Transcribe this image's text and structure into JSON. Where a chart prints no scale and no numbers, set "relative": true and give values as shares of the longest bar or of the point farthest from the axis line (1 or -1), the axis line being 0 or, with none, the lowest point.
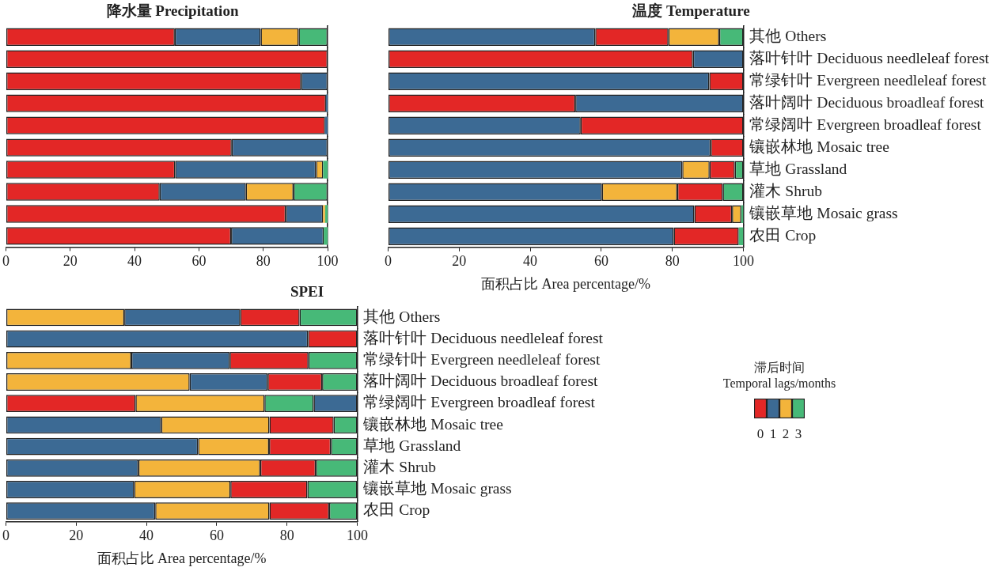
{
  "chart_data": [
    {
      "type": "bar",
      "title": "降水量 Precipitation",
      "orientation": "horizontal",
      "stacked": true,
      "xlim": [
        0,
        100
      ],
      "xticks": [
        0,
        20,
        40,
        60,
        80,
        100
      ],
      "categories": [
        null,
        null,
        null,
        null,
        null,
        null,
        null,
        null,
        null,
        null
      ],
      "series": [
        {
          "values": [
            52.5,
            100,
            91.8,
            99.5,
            99.2,
            70.2,
            52.6,
            47.8,
            87.0,
            70.0
          ],
          "colors": [
            "#e32726",
            "#e32726",
            "#e32726",
            "#e32726",
            "#e32726",
            "#e32726",
            "#e32726",
            "#e32726",
            "#e32726",
            "#e32726"
          ]
        },
        {
          "values": [
            26.7,
            null,
            8.2,
            0.5,
            0.8,
            29.8,
            43.8,
            26.8,
            11.6,
            28.8
          ],
          "colors": [
            "#3c6a94",
            null,
            "#3c6a94",
            "#3c6a94",
            "#3c6a94",
            "#3c6a94",
            "#3c6a94",
            "#3c6a94",
            "#3c6a94",
            "#3c6a94"
          ]
        },
        {
          "values": [
            11.8,
            null,
            null,
            null,
            null,
            null,
            2.2,
            14.8,
            0.6,
            1.2
          ],
          "colors": [
            "#f3b43b",
            null,
            null,
            null,
            null,
            null,
            "#f3b43b",
            "#f3b43b",
            "#f3b43b",
            "#47b978"
          ]
        },
        {
          "values": [
            9.0,
            null,
            null,
            null,
            null,
            null,
            1.4,
            10.6,
            0.8,
            null
          ],
          "colors": [
            "#47b978",
            null,
            null,
            null,
            null,
            null,
            "#47b978",
            "#47b978",
            "#47b978",
            null
          ]
        }
      ]
    },
    {
      "type": "bar",
      "title": "温度 Temperature",
      "xlabel": "面积占比 Area percentage/%",
      "orientation": "horizontal",
      "stacked": true,
      "xlim": [
        0,
        100
      ],
      "xticks": [
        0,
        20,
        40,
        60,
        80,
        100
      ],
      "categories": [
        "其他 Others",
        "落叶针叶 Deciduous needleleaf forest",
        "常绿针叶 Evergreen needleleaf forest",
        "落叶阔叶 Deciduous broadleaf forest",
        "常绿阔叶 Evergreen broadleaf forest",
        "镶嵌林地 Mosaic tree",
        "草地 Grassland",
        "灌木 Shrub",
        "镶嵌草地 Mosaic grass",
        "农田 Crop"
      ],
      "series": [
        {
          "values": [
            58.3,
            85.8,
            90.4,
            52.7,
            54.2,
            90.8,
            82.8,
            60.2,
            86.2,
            80.4
          ],
          "colors": [
            "#3c6a94",
            "#e32726",
            "#3c6a94",
            "#e32726",
            "#3c6a94",
            "#3c6a94",
            "#3c6a94",
            "#3c6a94",
            "#3c6a94",
            "#3c6a94"
          ]
        },
        {
          "values": [
            20.6,
            14.2,
            9.6,
            47.3,
            45.8,
            9.2,
            7.7,
            21.2,
            10.6,
            18.3
          ],
          "colors": [
            "#e32726",
            "#3c6a94",
            "#e32726",
            "#3c6a94",
            "#e32726",
            "#e32726",
            "#f3b43b",
            "#f3b43b",
            "#e32726",
            "#e32726"
          ]
        },
        {
          "values": [
            14.3,
            null,
            null,
            null,
            null,
            null,
            7.1,
            12.8,
            2.6,
            1.3
          ],
          "colors": [
            "#f3b43b",
            null,
            null,
            null,
            null,
            null,
            "#e32726",
            "#e32726",
            "#f3b43b",
            "#47b978"
          ]
        },
        {
          "values": [
            6.8,
            null,
            null,
            null,
            null,
            null,
            2.4,
            5.8,
            0.6,
            null
          ],
          "colors": [
            "#47b978",
            null,
            null,
            null,
            null,
            null,
            "#47b978",
            "#47b978",
            "#47b978",
            null
          ]
        }
      ]
    },
    {
      "type": "bar",
      "title": "SPEI",
      "xlabel": "面积占比 Area percentage/%",
      "orientation": "horizontal",
      "stacked": true,
      "xlim": [
        0,
        100
      ],
      "xticks": [
        0,
        20,
        40,
        60,
        80,
        100
      ],
      "categories": [
        "其他 Others",
        "落叶针叶 Deciduous needleleaf forest",
        "常绿针叶 Evergreen needleleaf forest",
        "落叶阔叶 Deciduous broadleaf forest",
        "常绿阔叶 Evergreen broadleaf forest",
        "镶嵌林地 Mosaic tree",
        "草地 Grassland",
        "灌木 Shrub",
        "镶嵌草地 Mosaic grass",
        "农田 Crop"
      ],
      "series": [
        {
          "values": [
            33.7,
            86.0,
            35.7,
            52.3,
            36.9,
            44.2,
            54.7,
            37.7,
            36.5,
            42.5
          ],
          "colors": [
            "#f3b43b",
            "#3c6a94",
            "#f3b43b",
            "#f3b43b",
            "#e32726",
            "#3c6a94",
            "#3c6a94",
            "#3c6a94",
            "#3c6a94",
            "#3c6a94"
          ]
        },
        {
          "values": [
            33.0,
            14.0,
            28.0,
            22.2,
            36.7,
            30.8,
            20.2,
            34.7,
            27.4,
            32.5
          ],
          "colors": [
            "#3c6a94",
            "#e32726",
            "#3c6a94",
            "#3c6a94",
            "#f3b43b",
            "#f3b43b",
            "#f3b43b",
            "#f3b43b",
            "#f3b43b",
            "#f3b43b"
          ]
        },
        {
          "values": [
            16.9,
            null,
            22.4,
            15.5,
            14.0,
            18.3,
            17.6,
            15.8,
            21.9,
            17.0
          ],
          "colors": [
            "#e32726",
            null,
            "#e32726",
            "#e32726",
            "#47b978",
            "#e32726",
            "#e32726",
            "#e32726",
            "#e32726",
            "#e32726"
          ]
        },
        {
          "values": [
            16.4,
            null,
            13.9,
            10.0,
            12.4,
            6.7,
            7.5,
            11.8,
            14.2,
            8.0
          ],
          "colors": [
            "#47b978",
            null,
            "#47b978",
            "#47b978",
            "#3c6a94",
            "#47b978",
            "#47b978",
            "#47b978",
            "#47b978",
            "#47b978"
          ]
        }
      ]
    },
    {
      "type": "bar",
      "relative": true,
      "title": "滞后时间",
      "subtitle": "Temporal lags/months",
      "categories": [
        "0",
        "1",
        "2",
        "3"
      ],
      "values": [
        1,
        1,
        1,
        1
      ],
      "colors": [
        "#e32726",
        "#3c6a94",
        "#f3b43b",
        "#47b978"
      ]
    }
  ]
}
